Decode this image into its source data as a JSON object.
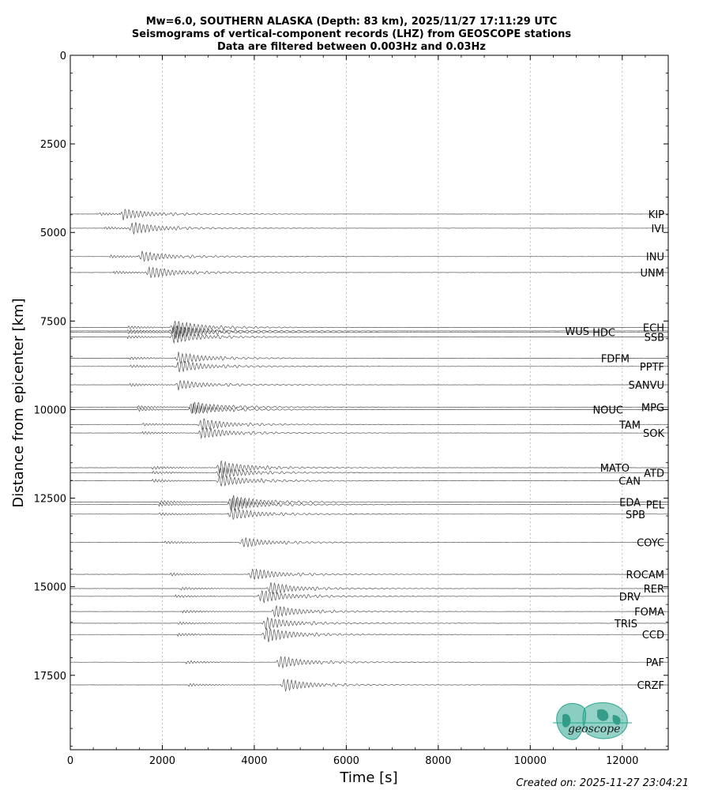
{
  "chart_data": {
    "type": "line",
    "title_lines": [
      "Mw=6.0, SOUTHERN ALASKA (Depth: 83 km), 2025/11/27 17:11:29 UTC",
      "Seismograms of vertical-component records (LHZ) from GEOSCOPE stations",
      "Data are filtered between 0.003Hz and 0.03Hz"
    ],
    "xlabel": "Time [s]",
    "ylabel": "Distance from epicenter [km]",
    "xlim": [
      0,
      13000
    ],
    "ylim": [
      19600,
      0
    ],
    "y_inverted": true,
    "x_ticks": [
      "0",
      "2000",
      "4000",
      "6000",
      "8000",
      "10000",
      "12000"
    ],
    "y_ticks": [
      "0",
      "2500",
      "5000",
      "7500",
      "10000",
      "12500",
      "15000",
      "17500"
    ],
    "grid": "vertical dotted",
    "trace_color": "#555555",
    "stations": [
      {
        "name": "KIP",
        "distance": 4480,
        "arrival": 1150,
        "amp": 0.9
      },
      {
        "name": "IVI",
        "distance": 4880,
        "arrival": 1350,
        "amp": 1.0
      },
      {
        "name": "INU",
        "distance": 5680,
        "arrival": 1550,
        "amp": 0.9
      },
      {
        "name": "UNM",
        "distance": 6130,
        "arrival": 1720,
        "amp": 1.0
      },
      {
        "name": "ECH",
        "distance": 7680,
        "arrival": 2250,
        "amp": 1.2
      },
      {
        "name": "WUS",
        "distance": 7780,
        "arrival": 2250,
        "amp": 1.0
      },
      {
        "name": "HDC",
        "distance": 7820,
        "arrival": 2250,
        "amp": 1.2
      },
      {
        "name": "SSB",
        "distance": 7950,
        "arrival": 2250,
        "amp": 1.0
      },
      {
        "name": "FDFM",
        "distance": 8550,
        "arrival": 2350,
        "amp": 1.0
      },
      {
        "name": "PPTF",
        "distance": 8780,
        "arrival": 2350,
        "amp": 1.0
      },
      {
        "name": "SANVU",
        "distance": 9300,
        "arrival": 2350,
        "amp": 0.8
      },
      {
        "name": "MPG",
        "distance": 9930,
        "arrival": 2650,
        "amp": 1.0
      },
      {
        "name": "NOUC",
        "distance": 10000,
        "arrival": 2650,
        "amp": 0.9
      },
      {
        "name": "TAM",
        "distance": 10420,
        "arrival": 2850,
        "amp": 1.0
      },
      {
        "name": "SOK",
        "distance": 10660,
        "arrival": 2850,
        "amp": 1.0
      },
      {
        "name": "MATO",
        "distance": 11640,
        "arrival": 3250,
        "amp": 1.2
      },
      {
        "name": "ATD",
        "distance": 11780,
        "arrival": 3250,
        "amp": 1.0
      },
      {
        "name": "CAN",
        "distance": 12010,
        "arrival": 3250,
        "amp": 1.0
      },
      {
        "name": "EDA",
        "distance": 12610,
        "arrival": 3500,
        "amp": 1.1
      },
      {
        "name": "PEL",
        "distance": 12680,
        "arrival": 3500,
        "amp": 1.1
      },
      {
        "name": "SPB",
        "distance": 12950,
        "arrival": 3500,
        "amp": 1.0
      },
      {
        "name": "COYC",
        "distance": 13750,
        "arrival": 3750,
        "amp": 0.8
      },
      {
        "name": "ROCAM",
        "distance": 14650,
        "arrival": 3950,
        "amp": 1.0
      },
      {
        "name": "RER",
        "distance": 15050,
        "arrival": 4350,
        "amp": 1.0
      },
      {
        "name": "DRV",
        "distance": 15270,
        "arrival": 4150,
        "amp": 1.1
      },
      {
        "name": "FOMA",
        "distance": 15700,
        "arrival": 4450,
        "amp": 1.0
      },
      {
        "name": "TRIS",
        "distance": 16030,
        "arrival": 4250,
        "amp": 1.0
      },
      {
        "name": "CCD",
        "distance": 16350,
        "arrival": 4250,
        "amp": 1.2
      },
      {
        "name": "PAF",
        "distance": 17130,
        "arrival": 4550,
        "amp": 1.0
      },
      {
        "name": "CRZF",
        "distance": 17770,
        "arrival": 4650,
        "amp": 1.0
      }
    ]
  },
  "credit": "Created on: 2025-11-27 23:04:21",
  "logo": {
    "text": "geoscope",
    "color": "#2aa58f"
  }
}
